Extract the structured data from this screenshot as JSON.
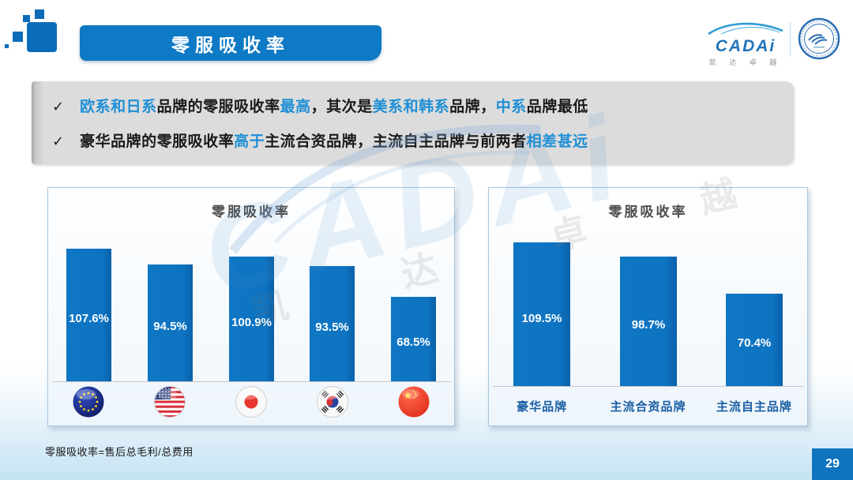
{
  "header": {
    "title": "零服吸收率",
    "logo": {
      "brand": "CADAi",
      "brand_sub": "凯 达 卓 越"
    }
  },
  "key_findings": {
    "bullets": [
      {
        "check": "✓",
        "segments": [
          {
            "t": "欧系和日系",
            "hl": true
          },
          {
            "t": "品牌的零服吸收率",
            "hl": false
          },
          {
            "t": "最高",
            "hl": true
          },
          {
            "t": "，其次是",
            "hl": false
          },
          {
            "t": "美系和韩系",
            "hl": true
          },
          {
            "t": "品牌，",
            "hl": false
          },
          {
            "t": "中系",
            "hl": true
          },
          {
            "t": "品牌最低",
            "hl": false
          }
        ]
      },
      {
        "check": "✓",
        "segments": [
          {
            "t": "豪华品牌的零服吸收率",
            "hl": false
          },
          {
            "t": "高于",
            "hl": true
          },
          {
            "t": "主流合资品牌，主流自主品牌与前两者",
            "hl": false
          },
          {
            "t": "相差甚远",
            "hl": true
          }
        ]
      }
    ]
  },
  "chart_data": [
    {
      "type": "bar",
      "title": "零服吸收率",
      "categories": [
        "欧系",
        "美系",
        "日系",
        "韩系",
        "中系"
      ],
      "category_icons": [
        "eu-flag-icon",
        "us-flag-icon",
        "japan-flag-icon",
        "korea-flag-icon",
        "china-flag-icon"
      ],
      "values": [
        107.6,
        94.5,
        100.9,
        93.5,
        68.5
      ],
      "value_labels": [
        "107.6%",
        "94.5%",
        "100.9%",
        "93.5%",
        "68.5%"
      ],
      "ylim": [
        0,
        120
      ],
      "grid": false,
      "legend": "none",
      "value_label_position": "inside-middle"
    },
    {
      "type": "bar",
      "title": "零服吸收率",
      "categories": [
        "豪华品牌",
        "主流合资品牌",
        "主流自主品牌"
      ],
      "values": [
        109.5,
        98.7,
        70.4
      ],
      "value_labels": [
        "109.5%",
        "98.7%",
        "70.4%"
      ],
      "ylim": [
        0,
        120
      ],
      "grid": false,
      "legend": "none",
      "value_label_position": "inside-middle"
    }
  ],
  "watermark": {
    "text": "CADAi",
    "subtext": "凯 达 卓 越"
  },
  "footer": {
    "note": "零服吸收率=售后总毛利/总费用",
    "page_number": "29"
  },
  "colors": {
    "brand_blue": "#0E79C4",
    "bar_blue": "#0E74C2",
    "highlight_blue": "#1E8FD5",
    "category_label_blue": "#1B5FA5",
    "findings_box_gray": "#DCDCDC",
    "panel_border": "#A9C6DD",
    "page_badge_blue": "#0E74C0"
  }
}
